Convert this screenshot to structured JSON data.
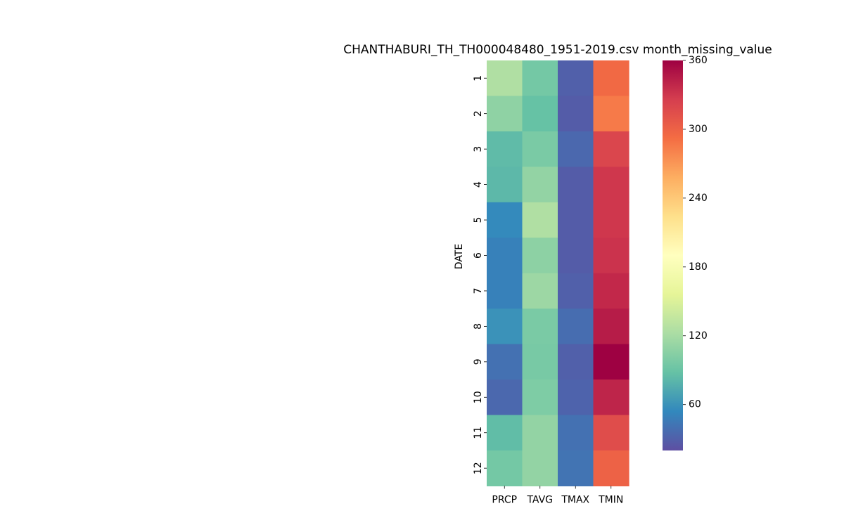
{
  "chart_data": {
    "type": "heatmap",
    "title": "CHANTHABURI_TH_TH000048480_1951-2019.csv month_missing_value",
    "xlabel": "",
    "ylabel": "DATE",
    "columns": [
      "PRCP",
      "TAVG",
      "TMAX",
      "TMIN"
    ],
    "rows": [
      "1",
      "2",
      "3",
      "4",
      "5",
      "6",
      "7",
      "8",
      "9",
      "10",
      "11",
      "12"
    ],
    "values": [
      [
        125,
        95,
        30,
        295
      ],
      [
        108,
        88,
        28,
        285
      ],
      [
        84,
        98,
        35,
        320
      ],
      [
        82,
        110,
        28,
        330
      ],
      [
        55,
        125,
        28,
        330
      ],
      [
        50,
        107,
        28,
        332
      ],
      [
        50,
        115,
        30,
        338
      ],
      [
        60,
        98,
        38,
        345
      ],
      [
        40,
        97,
        30,
        360
      ],
      [
        35,
        100,
        32,
        340
      ],
      [
        85,
        110,
        40,
        315
      ],
      [
        95,
        110,
        42,
        300
      ]
    ],
    "colorbar": {
      "colormap": "Spectral_r",
      "range": [
        20,
        360
      ],
      "ticks": [
        60,
        120,
        180,
        240,
        300,
        360
      ]
    }
  }
}
